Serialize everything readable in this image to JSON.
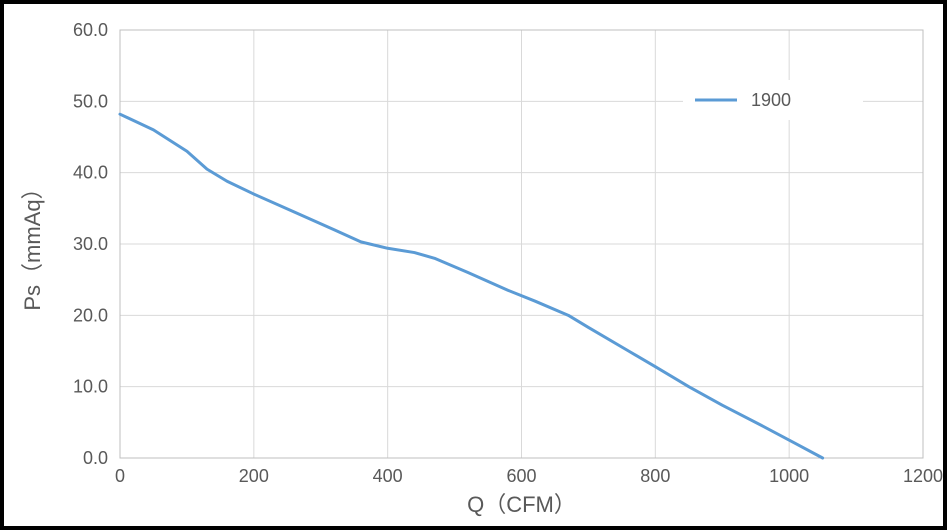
{
  "chart": {
    "type": "line",
    "background_color": "#ffffff",
    "outer_border_color": "#000000",
    "plot_border_color": "#bfbfbf",
    "grid_color": "#d9d9d9",
    "tick_label_color": "#595959",
    "axis_label_color": "#595959",
    "tick_label_fontsize": 18,
    "axis_label_fontsize": 22,
    "x": {
      "label": "Q（CFM）",
      "min": 0,
      "max": 1200,
      "tick_step": 200,
      "ticks": [
        "0",
        "200",
        "400",
        "600",
        "800",
        "1000",
        "1200"
      ]
    },
    "y": {
      "label": "Ps（mmAq）",
      "min": 0.0,
      "max": 60.0,
      "tick_step": 10.0,
      "ticks": [
        "0.0",
        "10.0",
        "20.0",
        "30.0",
        "40.0",
        "50.0",
        "60.0"
      ]
    },
    "legend": {
      "position": "top-right-inside",
      "items": [
        {
          "label": "1900",
          "color": "#5b9bd5"
        }
      ],
      "fontsize": 18,
      "line_length": 42
    },
    "series": [
      {
        "name": "1900",
        "color": "#5b9bd5",
        "line_width": 3,
        "points": [
          {
            "x": 0,
            "y": 48.2
          },
          {
            "x": 50,
            "y": 46.0
          },
          {
            "x": 100,
            "y": 43.0
          },
          {
            "x": 130,
            "y": 40.5
          },
          {
            "x": 160,
            "y": 38.8
          },
          {
            "x": 200,
            "y": 37.0
          },
          {
            "x": 260,
            "y": 34.5
          },
          {
            "x": 320,
            "y": 32.0
          },
          {
            "x": 360,
            "y": 30.3
          },
          {
            "x": 400,
            "y": 29.4
          },
          {
            "x": 440,
            "y": 28.8
          },
          {
            "x": 470,
            "y": 28.0
          },
          {
            "x": 520,
            "y": 26.0
          },
          {
            "x": 580,
            "y": 23.5
          },
          {
            "x": 620,
            "y": 22.0
          },
          {
            "x": 670,
            "y": 20.0
          },
          {
            "x": 700,
            "y": 18.3
          },
          {
            "x": 760,
            "y": 15.0
          },
          {
            "x": 800,
            "y": 12.8
          },
          {
            "x": 850,
            "y": 10.0
          },
          {
            "x": 900,
            "y": 7.4
          },
          {
            "x": 960,
            "y": 4.5
          },
          {
            "x": 1010,
            "y": 2.0
          },
          {
            "x": 1050,
            "y": 0.0
          }
        ]
      }
    ]
  }
}
